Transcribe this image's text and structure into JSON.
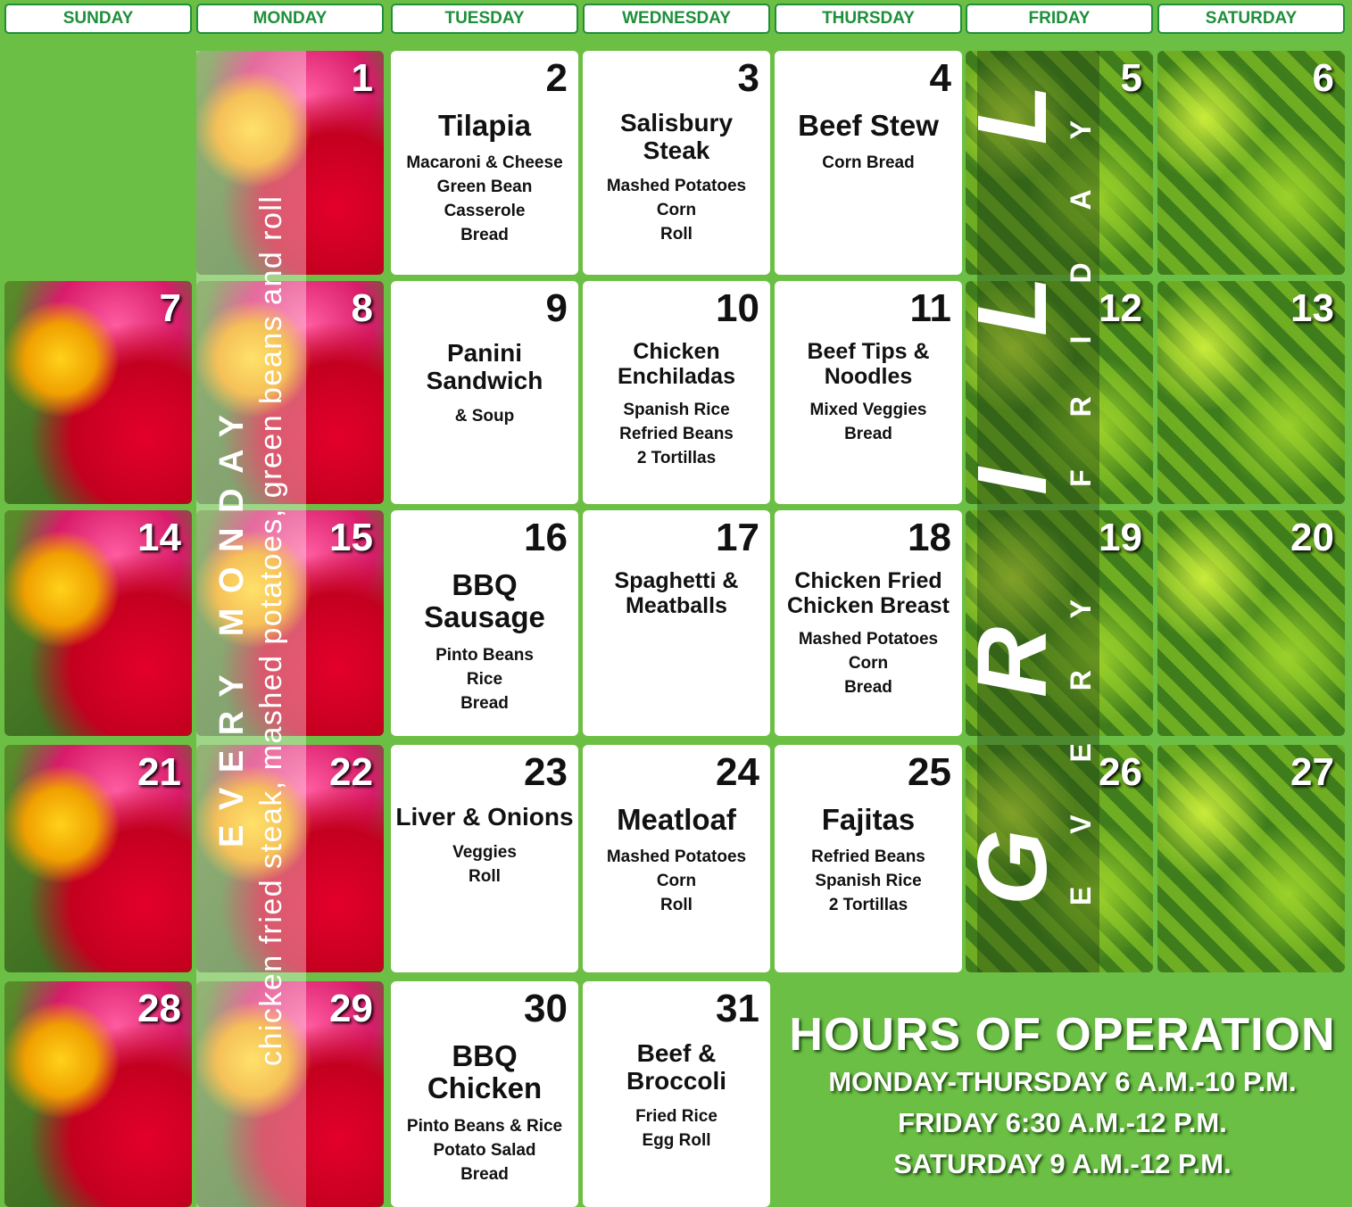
{
  "weekdays": [
    "SUNDAY",
    "MONDAY",
    "TUESDAY",
    "WEDNESDAY",
    "THURSDAY",
    "FRIDAY",
    "SATURDAY"
  ],
  "days": [
    {
      "number": 1
    },
    {
      "number": 2,
      "title": "Tilapia",
      "items": [
        "Macaroni  & Cheese",
        "Green Bean Casserole",
        "Bread"
      ]
    },
    {
      "number": 3,
      "title": "Salisbury Steak",
      "items": [
        "Mashed Potatoes",
        "Corn",
        "Roll"
      ]
    },
    {
      "number": 4,
      "title": "Beef Stew",
      "items": [
        "Corn Bread"
      ]
    },
    {
      "number": 5
    },
    {
      "number": 6
    },
    {
      "number": 7
    },
    {
      "number": 8
    },
    {
      "number": 9,
      "title": "Panini Sandwich",
      "items": [
        "& Soup"
      ]
    },
    {
      "number": 10,
      "title": "Chicken Enchiladas",
      "items": [
        "Spanish Rice",
        "Refried Beans",
        "2 Tortillas"
      ]
    },
    {
      "number": 11,
      "title": "Beef Tips & Noodles",
      "items": [
        "Mixed Veggies",
        "Bread"
      ]
    },
    {
      "number": 12
    },
    {
      "number": 13
    },
    {
      "number": 14
    },
    {
      "number": 15
    },
    {
      "number": 16,
      "title": "BBQ Sausage",
      "items": [
        "Pinto Beans",
        "Rice",
        "Bread"
      ]
    },
    {
      "number": 17,
      "title": "Spaghetti & Meatballs",
      "items": []
    },
    {
      "number": 18,
      "title": "Chicken Fried Chicken Breast",
      "items": [
        "Mashed Potatoes",
        "Corn",
        "Bread"
      ]
    },
    {
      "number": 19
    },
    {
      "number": 20
    },
    {
      "number": 21
    },
    {
      "number": 22
    },
    {
      "number": 23,
      "title": "Liver & Onions",
      "items": [
        "Veggies",
        "Roll"
      ]
    },
    {
      "number": 24,
      "title": "Meatloaf",
      "items": [
        "Mashed Potatoes",
        "Corn",
        "Roll"
      ]
    },
    {
      "number": 25,
      "title": "Fajitas",
      "items": [
        "Refried Beans",
        "Spanish Rice",
        "2 Tortillas"
      ]
    },
    {
      "number": 26
    },
    {
      "number": 27
    },
    {
      "number": 28
    },
    {
      "number": 29
    },
    {
      "number": 30,
      "title": "BBQ Chicken",
      "items": [
        "Pinto Beans & Rice",
        "Potato Salad",
        "Bread"
      ]
    },
    {
      "number": 31,
      "title": "Beef & Broccoli",
      "items": [
        "Fried Rice",
        "Egg Roll"
      ]
    }
  ],
  "monday_special": {
    "heading": "EVERY MONDAY",
    "menu": "chicken fried steak, mashed potatoes, green beans and roll"
  },
  "friday_special": {
    "heading": "GRILL",
    "subheading": "EVERY FRIDAY"
  },
  "hours": {
    "title": "HOURS OF OPERATION",
    "lines": [
      "MONDAY-THURSDAY 6 A.M.-10 P.M.",
      "FRIDAY 6:30 A.M.-12 P.M.",
      "SATURDAY 9 A.M.-12 P.M."
    ]
  }
}
